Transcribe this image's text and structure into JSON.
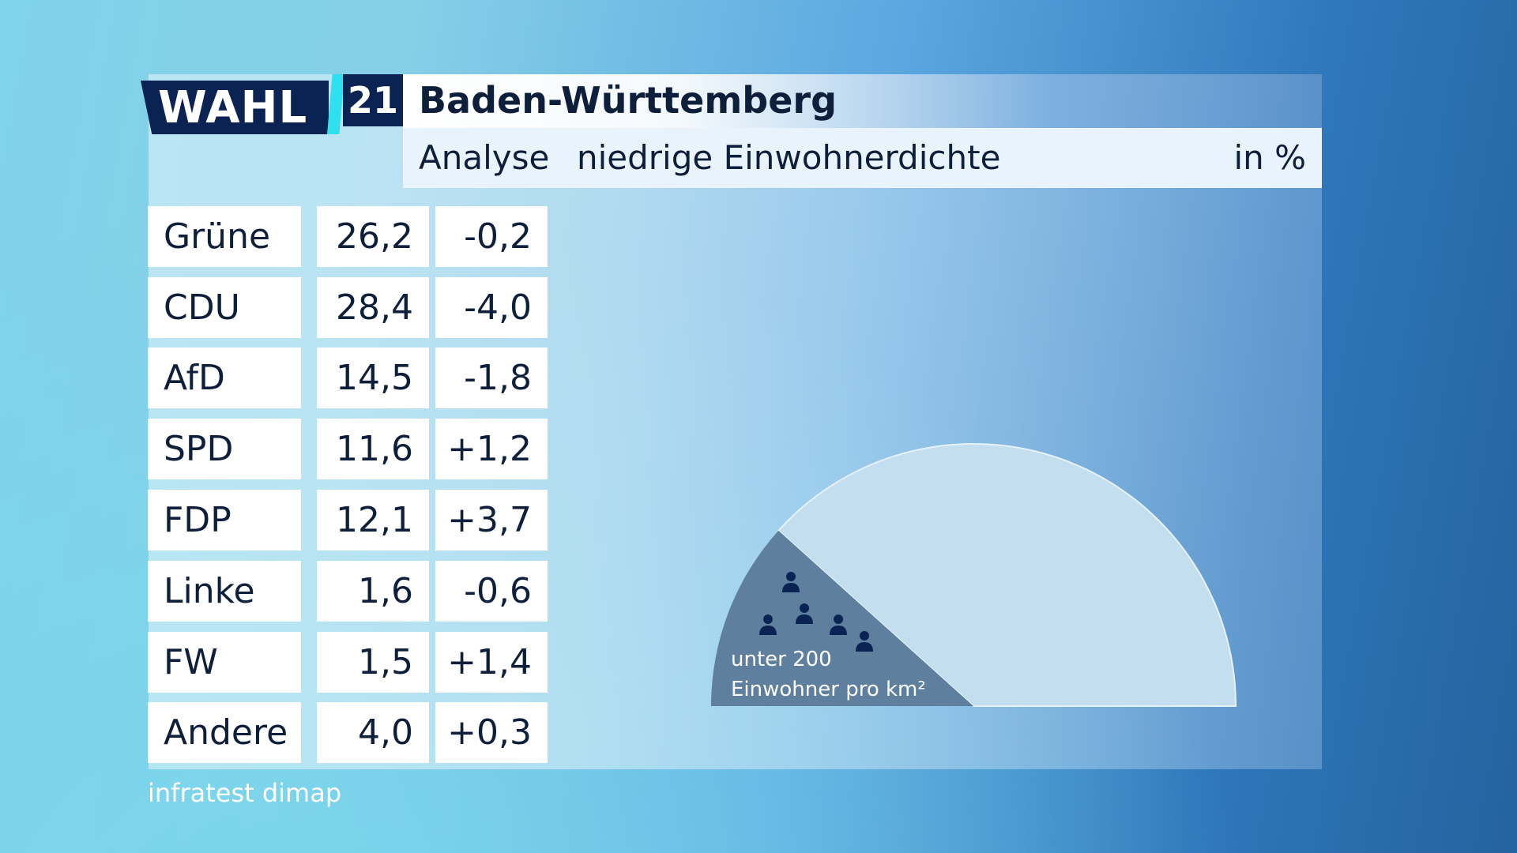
{
  "header": {
    "logo_text": "WAHL",
    "logo_year": "21",
    "title": "Baden-Württemberg",
    "subtitle_left": "Analyse",
    "subtitle_main": "niedrige Einwohnerdichte",
    "subtitle_unit": "in %"
  },
  "table": {
    "rows": [
      {
        "party": "Grüne",
        "value": "26,2",
        "diff": "-0,2"
      },
      {
        "party": "CDU",
        "value": "28,4",
        "diff": "-4,0"
      },
      {
        "party": "AfD",
        "value": "14,5",
        "diff": "-1,8"
      },
      {
        "party": "SPD",
        "value": "11,6",
        "diff": "+1,2"
      },
      {
        "party": "FDP",
        "value": "12,1",
        "diff": "+3,7"
      },
      {
        "party": "Linke",
        "value": "1,6",
        "diff": "-0,6"
      },
      {
        "party": "FW",
        "value": "1,5",
        "diff": "+1,4"
      },
      {
        "party": "Andere",
        "value": "4,0",
        "diff": "+0,3"
      }
    ]
  },
  "chart_data": {
    "type": "pie",
    "slices": [
      {
        "label": "unter 200 Einwohner pro km²",
        "highlighted": true
      },
      {
        "label": "",
        "highlighted": false
      }
    ],
    "highlight_label_line1": "unter 200",
    "highlight_label_line2": "Einwohner pro km²",
    "highlight_color": "#5f7f9f",
    "rest_color": "#c3deef",
    "icon": "person-icon"
  },
  "footer": {
    "source": "infratest dimap"
  }
}
